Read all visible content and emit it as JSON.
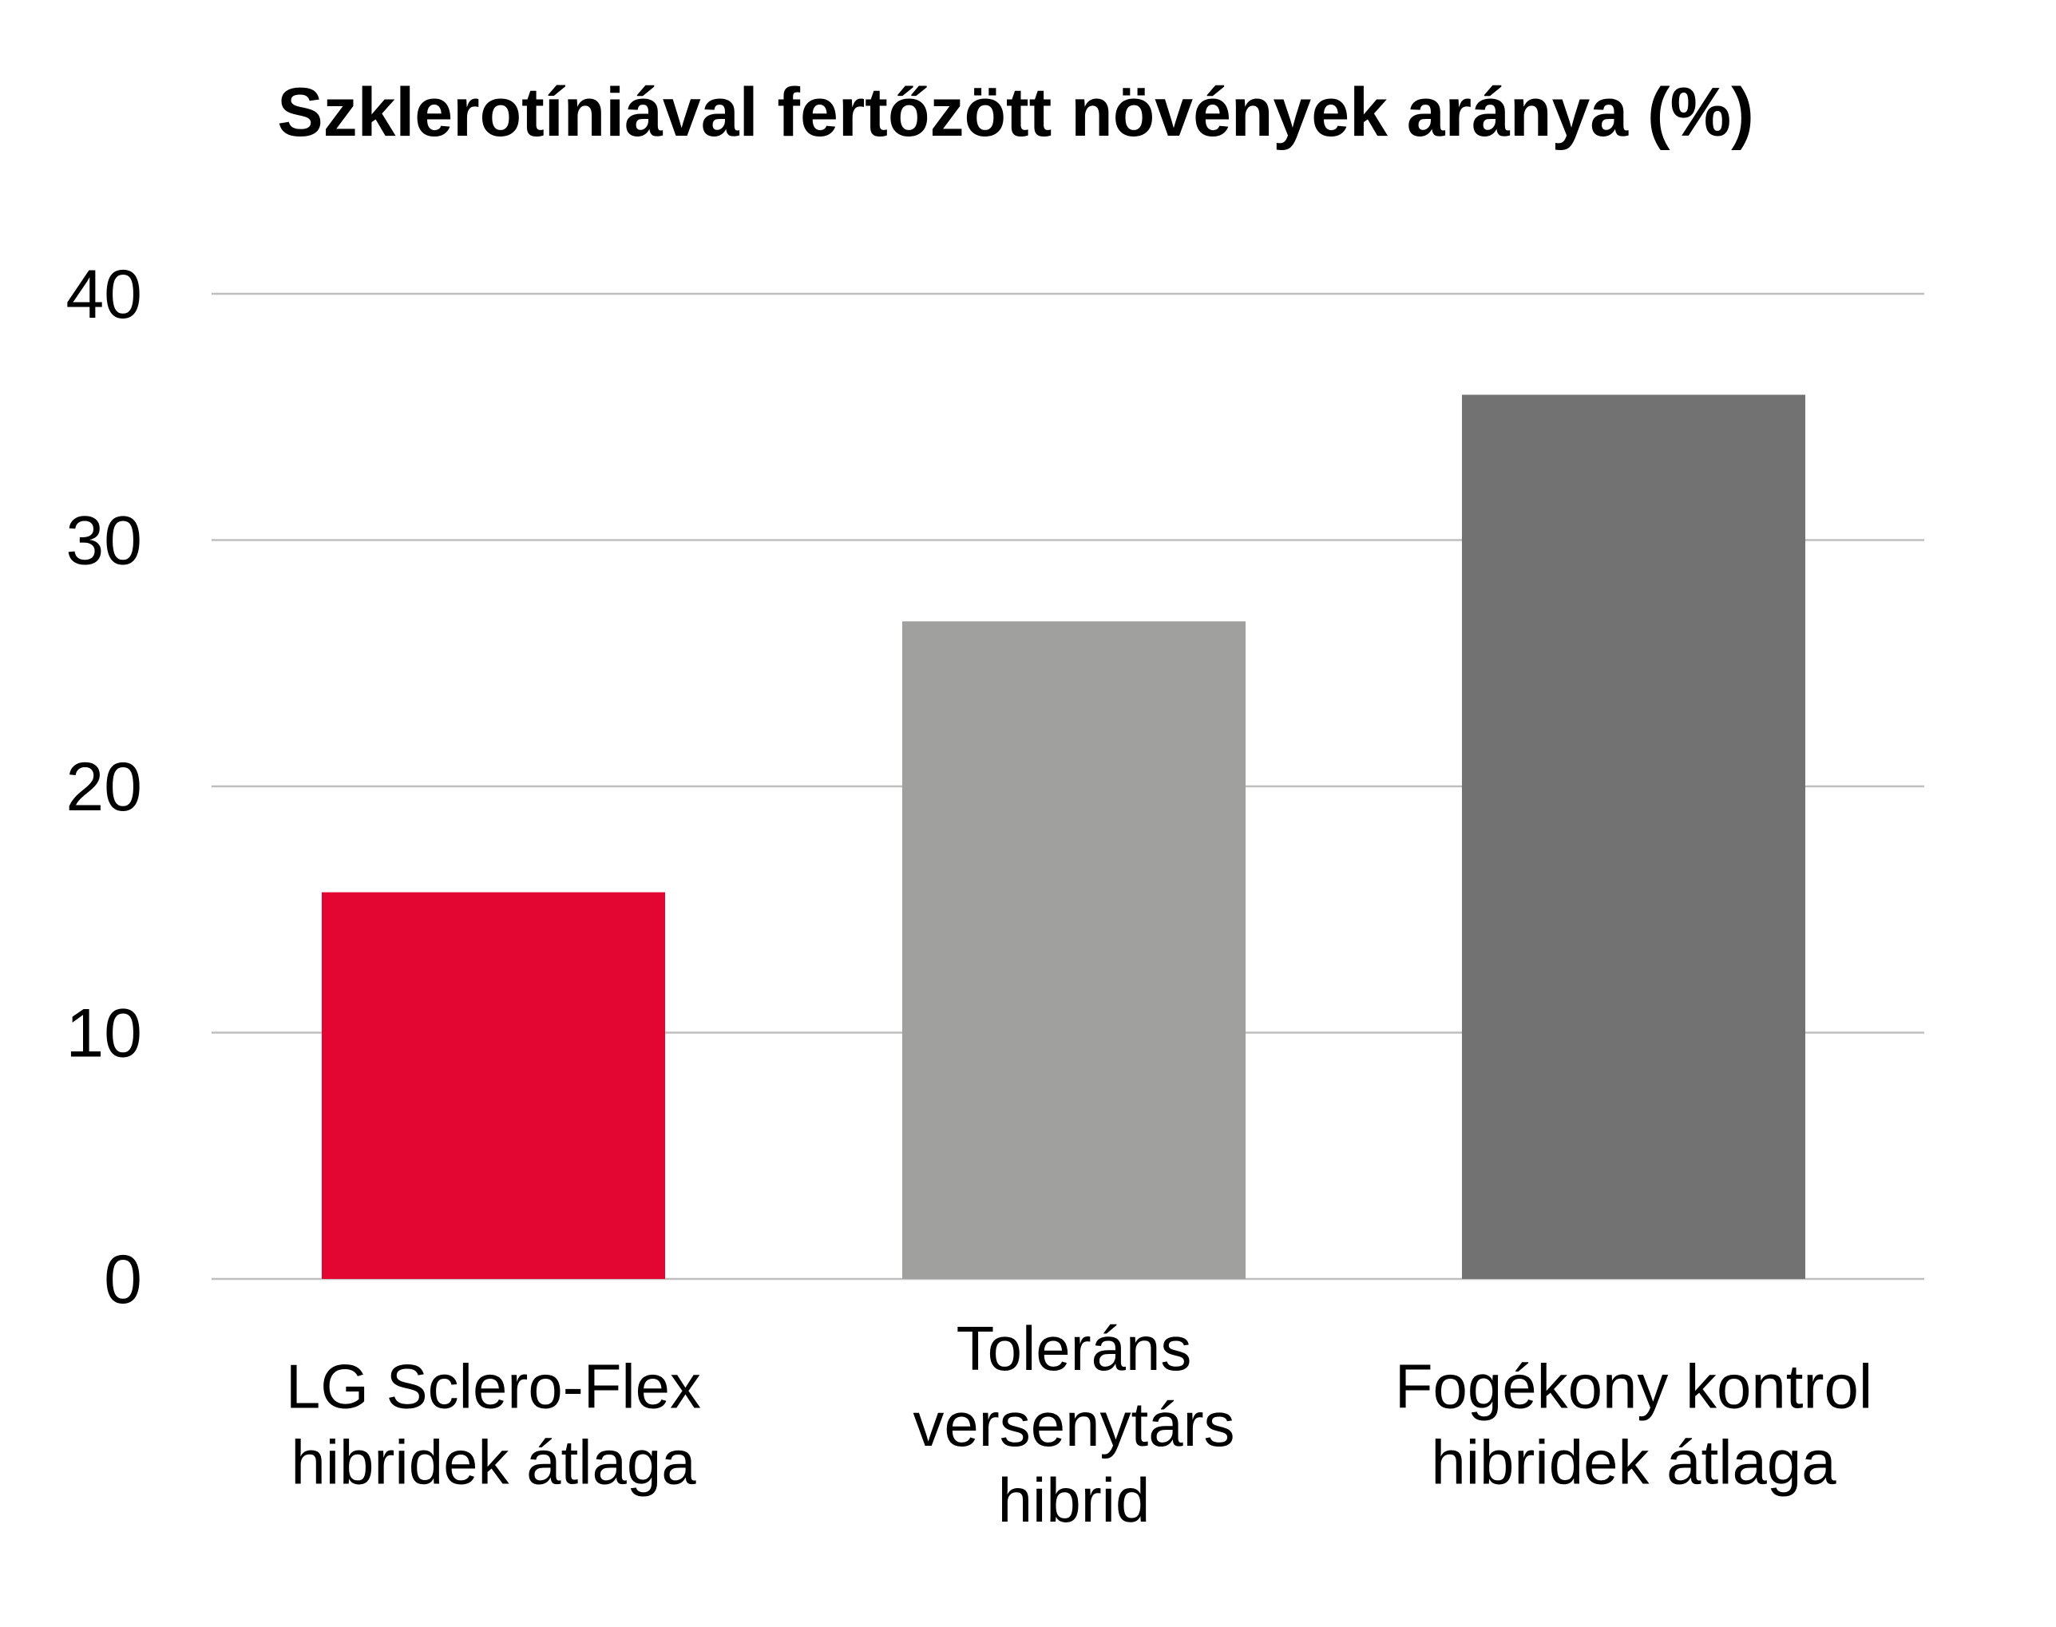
{
  "chart_data": {
    "type": "bar",
    "title": "Szklerotíniával fertőzött növények aránya (%)",
    "xlabel": "",
    "ylabel": "",
    "categories": [
      [
        "LG Sclero-Flex",
        "hibridek átlaga"
      ],
      [
        "Toleráns",
        "versenytárs",
        "hibrid"
      ],
      [
        "Fogékony kontrol",
        "hibridek átlaga"
      ]
    ],
    "values": [
      15.7,
      26.7,
      35.9
    ],
    "colors": [
      "#e30532",
      "#a0a09f",
      "#737272"
    ],
    "ylim": [
      0,
      40
    ],
    "yticks": [
      0,
      10,
      20,
      30,
      40
    ],
    "grid": true,
    "legend": "none"
  }
}
